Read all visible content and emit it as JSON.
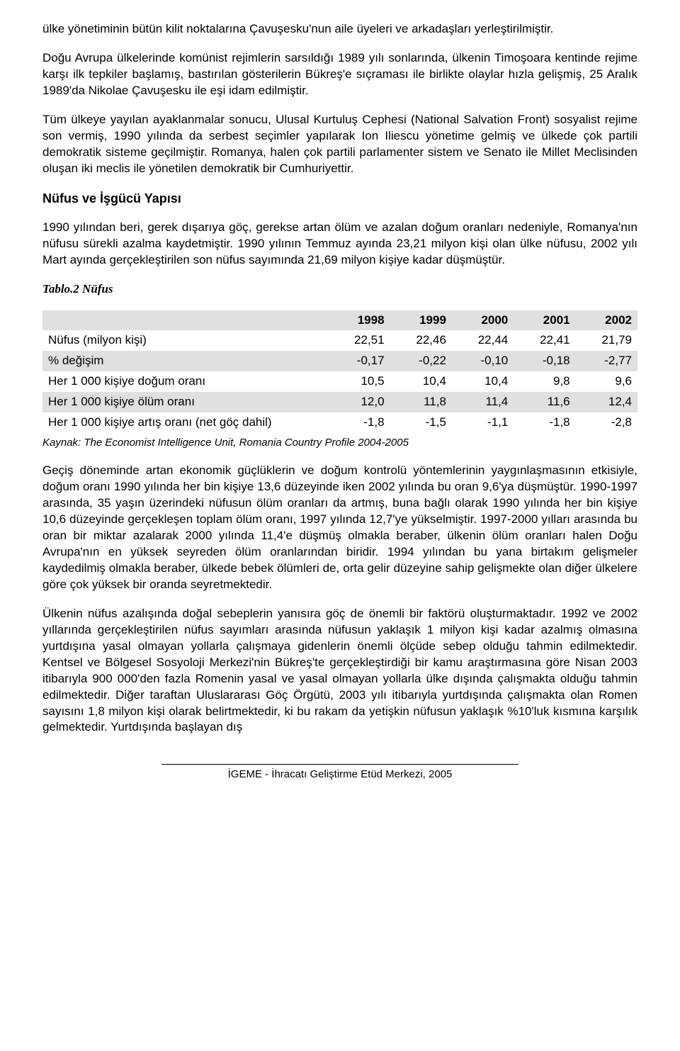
{
  "paragraphs": {
    "p1": "ülke yönetiminin bütün kilit noktalarına Çavuşesku'nun aile üyeleri ve arkadaşları yerleştirilmiştir.",
    "p2": "Doğu Avrupa ülkelerinde komünist rejimlerin sarsıldığı 1989 yılı sonlarında, ülkenin Timoşoara kentinde rejime karşı ilk tepkiler başlamış, bastırılan gösterilerin Bükreş'e sıçraması ile birlikte olaylar hızla gelişmiş, 25 Aralık 1989'da Nikolae Çavuşesku ile eşi idam edilmiştir.",
    "p3": "Tüm ülkeye yayılan ayaklanmalar sonucu, Ulusal Kurtuluş Cephesi (National Salvation Front) sosyalist rejime son vermiş, 1990 yılında da serbest seçimler yapılarak Ion Iliescu yönetime gelmiş ve ülkede çok partili demokratik sisteme geçilmiştir. Romanya, halen çok partili parlamenter sistem ve Senato ile Millet Meclisinden oluşan iki meclis ile yönetilen demokratik bir Cumhuriyettir.",
    "p4": "1990 yılından beri, gerek dışarıya göç, gerekse artan ölüm ve azalan doğum oranları nedeniyle, Romanya'nın nüfusu sürekli azalma kaydetmiştir. 1990 yılının Temmuz ayında 23,21 milyon kişi olan ülke nüfusu, 2002 yılı Mart ayında gerçekleştirilen son nüfus sayımında 21,69 milyon kişiye kadar düşmüştür.",
    "p5": "Geçiş döneminde artan ekonomik güçlüklerin ve doğum kontrolü yöntemlerinin yaygınlaşmasının etkisiyle, doğum oranı 1990 yılında her bin kişiye 13,6 düzeyinde iken 2002 yılında bu oran 9,6'ya düşmüştür. 1990-1997 arasında, 35 yaşın üzerindeki nüfusun ölüm oranları da artmış, buna bağlı olarak 1990 yılında her bin kişiye 10,6 düzeyinde gerçekleşen toplam ölüm oranı, 1997 yılında 12,7'ye yükselmiştir. 1997-2000 yılları arasında bu oran bir miktar azalarak 2000 yılında 11,4'e düşmüş olmakla beraber, ülkenin ölüm oranları halen Doğu Avrupa'nın en yüksek seyreden ölüm oranlarından biridir. 1994 yılından bu yana birtakım gelişmeler kaydedilmiş olmakla beraber, ülkede bebek ölümleri de, orta gelir düzeyine sahip gelişmekte olan diğer ülkelere göre çok yüksek bir oranda seyretmektedir.",
    "p6": "Ülkenin nüfus azalışında doğal sebeplerin yanısıra göç de önemli bir faktörü oluşturmaktadır. 1992 ve 2002 yıllarında gerçekleştirilen nüfus sayımları arasında nüfusun yaklaşık 1 milyon kişi kadar azalmış olmasına yurtdışına yasal olmayan yollarla çalışmaya gidenlerin önemli ölçüde sebep olduğu tahmin edilmektedir. Kentsel ve Bölgesel Sosyoloji Merkezi'nin Bükreş'te gerçekleştirdiği bir kamu araştırmasına göre Nisan 2003 itibarıyla 900 000'den fazla Romenin yasal ve yasal olmayan yollarla ülke dışında çalışmakta olduğu tahmin edilmektedir. Diğer taraftan Uluslararası Göç Örgütü, 2003 yılı itibarıyla yurtdışında çalışmakta olan Romen sayısını 1,8 milyon kişi olarak belirtmektedir, ki bu rakam da yetişkin nüfusun yaklaşık %10'luk kısmına karşılık gelmektedir. Yurtdışında başlayan dış"
  },
  "heading1": "Nüfus ve İşgücü Yapısı",
  "tableTitle": "Tablo.2 Nüfus",
  "table": {
    "shaded_bg": "#e0e0e0",
    "years": [
      "1998",
      "1999",
      "2000",
      "2001",
      "2002"
    ],
    "rows": [
      {
        "label": "Nüfus (milyon kişi)",
        "vals": [
          "22,51",
          "22,46",
          "22,44",
          "22,41",
          "21,79"
        ],
        "shaded": false
      },
      {
        "label": " % değişim",
        "vals": [
          "-0,17",
          "-0,22",
          "-0,10",
          "-0,18",
          "-2,77"
        ],
        "shaded": true
      },
      {
        "label": "Her 1 000 kişiye doğum oranı",
        "vals": [
          "10,5",
          "10,4",
          "10,4",
          "9,8",
          "9,6"
        ],
        "shaded": false
      },
      {
        "label": "Her 1 000 kişiye ölüm oranı",
        "vals": [
          "12,0",
          "11,8",
          "11,4",
          "11,6",
          "12,4"
        ],
        "shaded": true
      },
      {
        "label": "Her 1 000 kişiye artış oranı (net göç dahil)",
        "vals": [
          "-1,8",
          "-1,5",
          "-1,1",
          "-1,8",
          "-2,8"
        ],
        "shaded": false
      }
    ]
  },
  "source": "Kaynak: The Economist Intelligence Unit, Romania Country Profile 2004-2005",
  "footer": "İGEME - İhracatı Geliştirme Etüd Merkezi, 2005"
}
